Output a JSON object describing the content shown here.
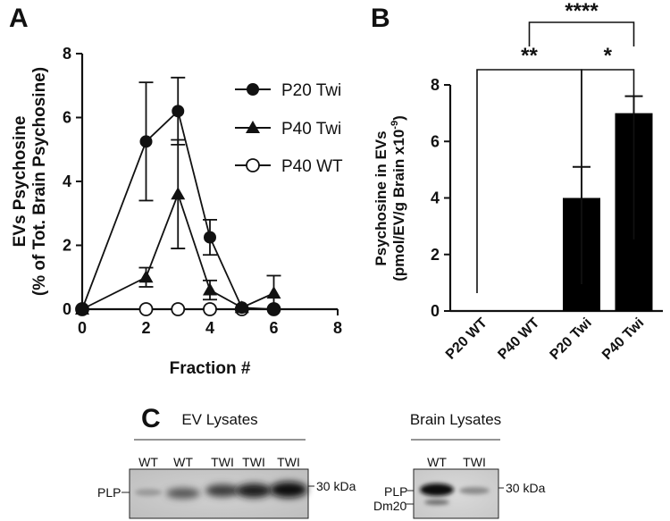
{
  "panels": {
    "a": "A",
    "b": "B",
    "c": "C"
  },
  "chart_data": [
    {
      "panel": "A",
      "type": "line",
      "xlabel": "Fraction #",
      "ylabel": "EVs Psychosine",
      "ylabel2": "(% of Tot. Brain Psychosine)",
      "xlim": [
        0,
        8
      ],
      "ylim": [
        0,
        8
      ],
      "xticks": [
        "0",
        "2",
        "4",
        "6",
        "8"
      ],
      "yticks": [
        "0",
        "2",
        "4",
        "6",
        "8"
      ],
      "legend_position": "top-right",
      "series": [
        {
          "name": "P20 Twi",
          "marker": "circle-filled",
          "x": [
            0,
            2,
            3,
            4,
            5,
            6
          ],
          "y": [
            0,
            5.25,
            6.2,
            2.25,
            0.05,
            0
          ],
          "err": [
            0,
            1.85,
            1.05,
            0.55,
            0,
            0
          ]
        },
        {
          "name": "P40 Twi",
          "marker": "triangle-filled",
          "x": [
            0,
            2,
            3,
            4,
            5,
            6
          ],
          "y": [
            0,
            1.0,
            3.6,
            0.6,
            0.05,
            0.5
          ],
          "err": [
            0,
            0.3,
            1.7,
            0.3,
            0,
            0.55
          ]
        },
        {
          "name": "P40 WT",
          "marker": "circle-open",
          "x": [
            0,
            2,
            3,
            4,
            5,
            6
          ],
          "y": [
            0,
            0,
            0,
            0,
            0,
            0
          ],
          "err": [
            0,
            0,
            0,
            0,
            0,
            0
          ]
        }
      ]
    },
    {
      "panel": "B",
      "type": "bar",
      "ylabel": "Psychosine in EVs",
      "ylabel2": "(pmol/EV/g Brain x10",
      "ylabel2_sup": "-9",
      "ylabel2_end": ")",
      "ylim": [
        0,
        8
      ],
      "yticks": [
        "0",
        "2",
        "4",
        "6",
        "8"
      ],
      "categories": [
        "P20 WT",
        "P40 WT",
        "P20 Twi",
        "P40 Twi"
      ],
      "values": [
        0,
        0,
        4.0,
        7.0
      ],
      "err": [
        0,
        0,
        1.1,
        0.6
      ],
      "significance": [
        {
          "from": 0,
          "to": 2,
          "label": "**"
        },
        {
          "from": 2,
          "to": 3,
          "label": "*"
        },
        {
          "from": 1,
          "to": 3,
          "label": "****"
        }
      ]
    }
  ],
  "blots": {
    "ev": {
      "title": "EV Lysates",
      "lanes": [
        "WT",
        "WT",
        "TWI",
        "TWI",
        "TWI"
      ],
      "left_label": "PLP",
      "marker": "30 kDa"
    },
    "brain": {
      "title": "Brain Lysates",
      "lanes": [
        "WT",
        "TWI"
      ],
      "left_label": "PLP",
      "left_label2": "Dm20",
      "marker": "30 kDa"
    }
  }
}
